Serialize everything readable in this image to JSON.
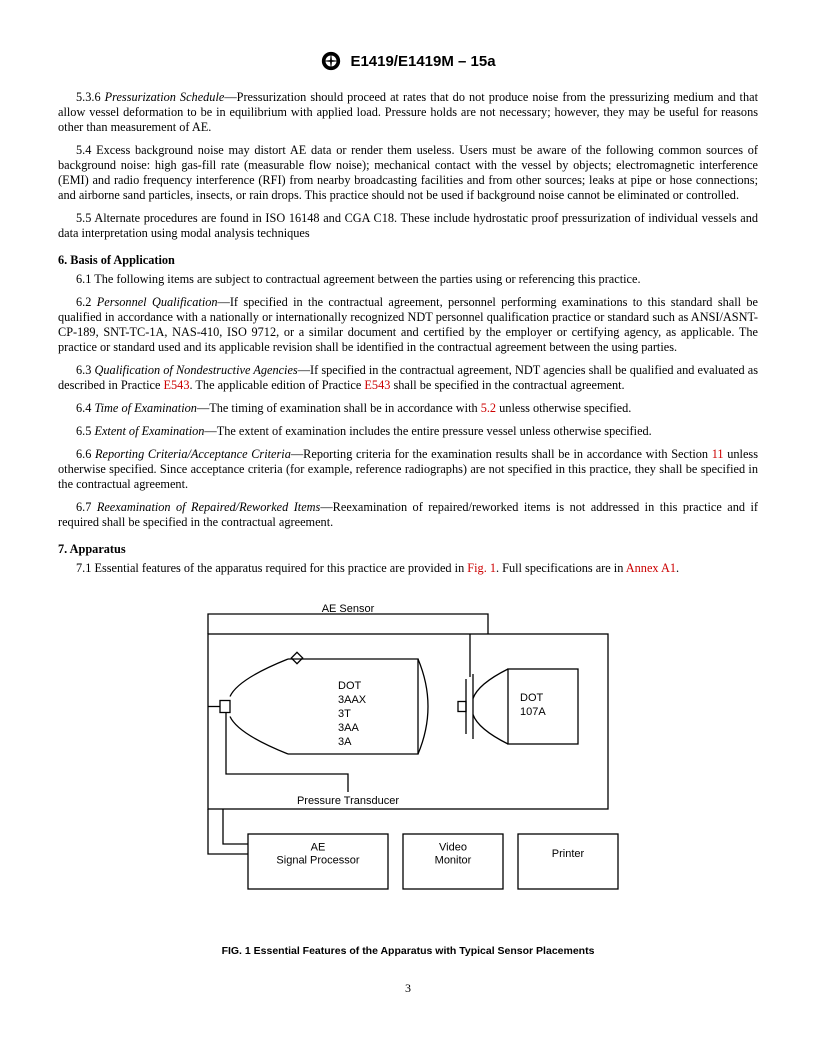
{
  "header": {
    "title": "E1419/E1419M – 15a"
  },
  "paras": {
    "p536": "5.3.6 Pressurization Schedule—Pressurization should proceed at rates that do not produce noise from the pressurizing medium and that allow vessel deformation to be in equilibrium with applied load. Pressure holds are not necessary; however, they may be useful for reasons other than measurement of AE.",
    "p54": "5.4 Excess background noise may distort AE data or render them useless. Users must be aware of the following common sources of background noise: high gas-fill rate (measurable flow noise); mechanical contact with the vessel by objects; electromagnetic interference (EMI) and radio frequency interference (RFI) from nearby broadcasting facilities and from other sources; leaks at pipe or hose connections; and airborne sand particles, insects, or rain drops. This practice should not be used if background noise cannot be eliminated or controlled.",
    "p55": "5.5 Alternate procedures are found in ISO 16148 and CGA C18. These include hydrostatic proof pressurization of individual vessels and data interpretation using modal analysis techniques",
    "s6": "6. Basis of Application",
    "p61": "6.1 The following items are subject to contractual agreement between the parties using or referencing this practice.",
    "p62a": "6.2 ",
    "p62i": "Personnel Qualification",
    "p62b": "—If specified in the contractual agreement, personnel performing examinations to this standard shall be qualified in accordance with a nationally or internationally recognized NDT personnel qualification practice or standard such as ANSI/ASNT-CP-189, SNT-TC-1A, NAS-410, ISO 9712, or a similar document and certified by the employer or certifying agency, as applicable. The practice or standard used and its applicable revision shall be identified in the contractual agreement between the using parties.",
    "p63a": "6.3 ",
    "p63i": "Qualification of Nondestructive Agencies",
    "p63b": "—If specified in the contractual agreement, NDT agencies shall be qualified and evaluated as described in Practice ",
    "p63l1": "E543",
    "p63c": ". The applicable edition of Practice ",
    "p63l2": "E543",
    "p63d": " shall be specified in the contractual agreement.",
    "p64a": "6.4 ",
    "p64i": "Time of Examination",
    "p64b": "—The timing of examination shall be in accordance with ",
    "p64l": "5.2",
    "p64c": " unless otherwise specified.",
    "p65a": "6.5 ",
    "p65i": "Extent of Examination",
    "p65b": "—The extent of examination includes the entire pressure vessel unless otherwise specified.",
    "p66a": "6.6 ",
    "p66i": "Reporting Criteria/Acceptance Criteria",
    "p66b": "—Reporting criteria for the examination results shall be in accordance with Section ",
    "p66l": "11",
    "p66c": " unless otherwise specified. Since acceptance criteria (for example, reference radiographs) are not specified in this practice, they shall be specified in the contractual agreement.",
    "p67a": "6.7 ",
    "p67i": "Reexamination of Repaired/Reworked Items",
    "p67b": "—Reexamination of repaired/reworked items is not addressed in this practice and if required shall be specified in the contractual agreement.",
    "s7": "7. Apparatus",
    "p71a": "7.1 Essential features of the apparatus required for this practice are provided in ",
    "p71l1": "Fig. 1",
    "p71b": ". Full specifications are in ",
    "p71l2": "Annex A1",
    "p71c": "."
  },
  "figure": {
    "caption": "FIG. 1  Essential Features of the Apparatus with Typical Sensor Placements",
    "labels": {
      "ae_sensor": "AE Sensor",
      "pressure_transducer": "Pressure Transducer",
      "cyl_left": "DOT\n3AAX\n3T\n3AA\n3A",
      "cyl_right": "DOT\n107A",
      "box1": "AE\nSignal Processor",
      "box2": "Video\nMonitor",
      "box3": "Printer"
    },
    "stroke": "#000000",
    "stroke_width": 1.3,
    "font_family": "Arial, Helvetica, sans-serif",
    "label_size": 11
  },
  "page_num": "3"
}
